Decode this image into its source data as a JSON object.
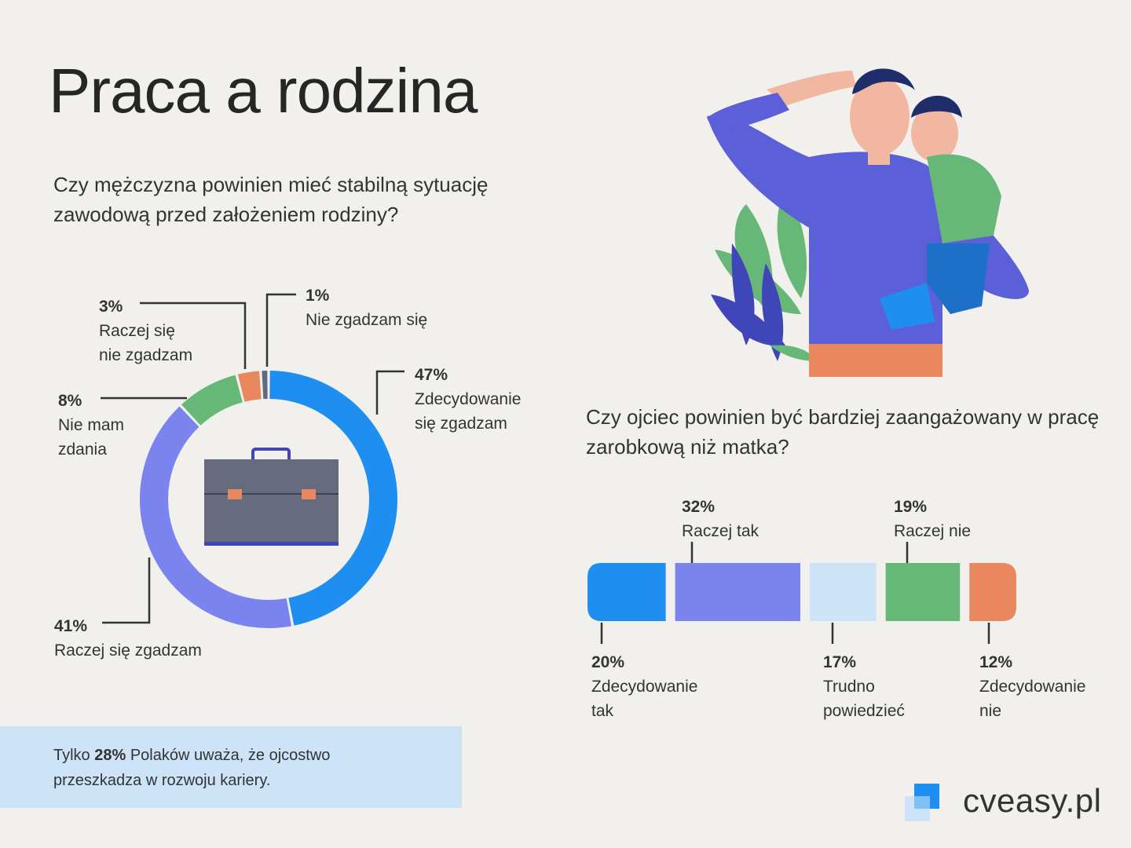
{
  "title": "Praca a rodzina",
  "question1": "Czy mężczyzna powinien mieć stabilną sytuację zawodową przed założeniem rodziny?",
  "question2": "Czy ojciec powinien być bardziej zaangażowany w pracę zarobkową niż matka?",
  "chart_data": [
    {
      "type": "donut",
      "title": "Czy mężczyzna powinien mieć stabilną sytuację zawodową przed założeniem rodziny?",
      "unit": "%",
      "slices": [
        {
          "label": "Zdecydowanie się zgadzam",
          "pct_text": "47%",
          "value": 47,
          "color": "#1e8ff0"
        },
        {
          "label": "Raczej się zgadzam",
          "pct_text": "41%",
          "value": 41,
          "color": "#7b84ee"
        },
        {
          "label": "Nie mam zdania",
          "pct_text": "8%",
          "value": 8,
          "color": "#67b878"
        },
        {
          "label": "Raczej się nie zgadzam",
          "pct_text": "3%",
          "value": 3,
          "color": "#e9875f"
        },
        {
          "label": "Nie zgadzam się",
          "pct_text": "1%",
          "value": 1,
          "color": "#636a7f"
        }
      ]
    },
    {
      "type": "bar",
      "orientation": "horizontal-stacked",
      "title": "Czy ojciec powinien być bardziej zaangażowany w pracę zarobkową niż matka?",
      "unit": "%",
      "segments": [
        {
          "label": "Zdecydowanie tak",
          "pct_text": "20%",
          "value": 20,
          "color": "#1e8ff0"
        },
        {
          "label": "Raczej tak",
          "pct_text": "32%",
          "value": 32,
          "color": "#7b84ee"
        },
        {
          "label": "Trudno powiedzieć",
          "pct_text": "17%",
          "value": 17,
          "color": "#cce3f8"
        },
        {
          "label": "Raczej nie",
          "pct_text": "19%",
          "value": 19,
          "color": "#67b878"
        },
        {
          "label": "Zdecydowanie nie",
          "pct_text": "12%",
          "value": 12,
          "color": "#e9875f"
        }
      ]
    }
  ],
  "donut_labels": {
    "s47": {
      "pct": "47%",
      "text": "Zdecydowanie\nsię zgadzam"
    },
    "s41": {
      "pct": "41%",
      "text": "Raczej się zgadzam"
    },
    "s8": {
      "pct": "8%",
      "text": "Nie mam\nzdania"
    },
    "s3": {
      "pct": "3%",
      "text": "Raczej się\nnie zgadzam"
    },
    "s1": {
      "pct": "1%",
      "text": "Nie zgadzam się"
    }
  },
  "bar_labels": {
    "b20": {
      "pct": "20%",
      "text": "Zdecydowanie\ntak"
    },
    "b32": {
      "pct": "32%",
      "text": "Raczej tak"
    },
    "b17": {
      "pct": "17%",
      "text": "Trudno\npowiedzieć"
    },
    "b19": {
      "pct": "19%",
      "text": "Raczej nie"
    },
    "b12": {
      "pct": "12%",
      "text": "Zdecydowanie\nnie"
    }
  },
  "note": {
    "prefix": "Tylko ",
    "highlight": "28%",
    "suffix": " Polaków uważa, że ojcostwo przeszkadza w rozwoju kariery."
  },
  "logo": {
    "text": "cveasy.pl",
    "icon": "cveasy-logo-icon"
  },
  "illustration": {
    "icon": "father-son-salute-illustration"
  },
  "center_icon": "briefcase-icon",
  "colors": {
    "background": "#f1f0ec",
    "blue": "#1e8ff0",
    "violet": "#7b84ee",
    "green": "#67b878",
    "orange": "#e9875f",
    "light_blue": "#cce3f8",
    "gray": "#636a7f"
  }
}
